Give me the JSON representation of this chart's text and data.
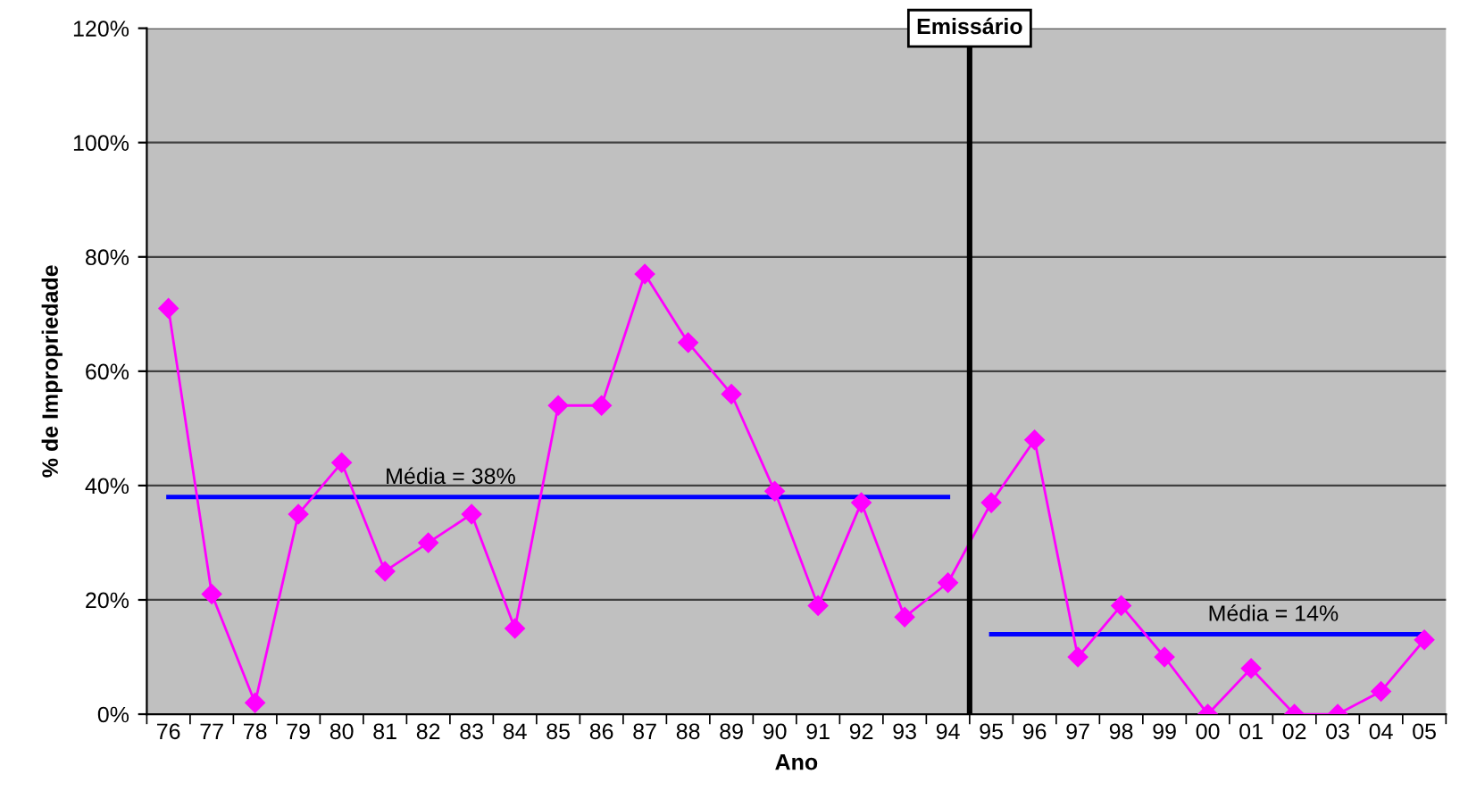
{
  "chart_data": {
    "type": "line",
    "xlabel": "Ano",
    "ylabel": "% de Impropriedade",
    "categories": [
      "76",
      "77",
      "78",
      "79",
      "80",
      "81",
      "82",
      "83",
      "84",
      "85",
      "86",
      "87",
      "88",
      "89",
      "90",
      "91",
      "92",
      "93",
      "94",
      "95",
      "96",
      "97",
      "98",
      "99",
      "00",
      "01",
      "02",
      "03",
      "04",
      "05"
    ],
    "series": [
      {
        "color": "#ff00ff",
        "marker": "diamond",
        "values": [
          71,
          21,
          2,
          35,
          44,
          25,
          30,
          35,
          15,
          54,
          54,
          77,
          65,
          56,
          39,
          19,
          37,
          17,
          23,
          37,
          48,
          10,
          19,
          10,
          0,
          8,
          0,
          0,
          4,
          13
        ]
      },
      {
        "color": "#0000ff",
        "marker": "none",
        "values": [
          38,
          38,
          38,
          38,
          38,
          38,
          38,
          38,
          38,
          38,
          38,
          38,
          38,
          38,
          38,
          38,
          38,
          38,
          38,
          null,
          null,
          null,
          null,
          null,
          null,
          null,
          null,
          null,
          null,
          null
        ]
      },
      {
        "color": "#0000ff",
        "marker": "none",
        "values": [
          null,
          null,
          null,
          null,
          null,
          null,
          null,
          null,
          null,
          null,
          null,
          null,
          null,
          null,
          null,
          null,
          null,
          null,
          null,
          14,
          14,
          14,
          14,
          14,
          14,
          14,
          14,
          14,
          14,
          14
        ]
      }
    ],
    "annotations": [
      {
        "text": "Média = 38%",
        "x": "81",
        "y": 38
      },
      {
        "text": "Média = 14%",
        "x": "00",
        "y": 14
      }
    ],
    "ref_lines": [
      {
        "axis": "x",
        "value": "95",
        "label": "Emissário",
        "color": "#000000"
      }
    ],
    "ylim": [
      0,
      120
    ],
    "yticks": [
      {
        "value": 0,
        "label": "0%"
      },
      {
        "value": 20,
        "label": "20%"
      },
      {
        "value": 40,
        "label": "40%"
      },
      {
        "value": 60,
        "label": "60%"
      },
      {
        "value": 80,
        "label": "80%"
      },
      {
        "value": 100,
        "label": "100%"
      },
      {
        "value": 120,
        "label": "120%"
      }
    ],
    "grid": "y",
    "legend": false
  }
}
